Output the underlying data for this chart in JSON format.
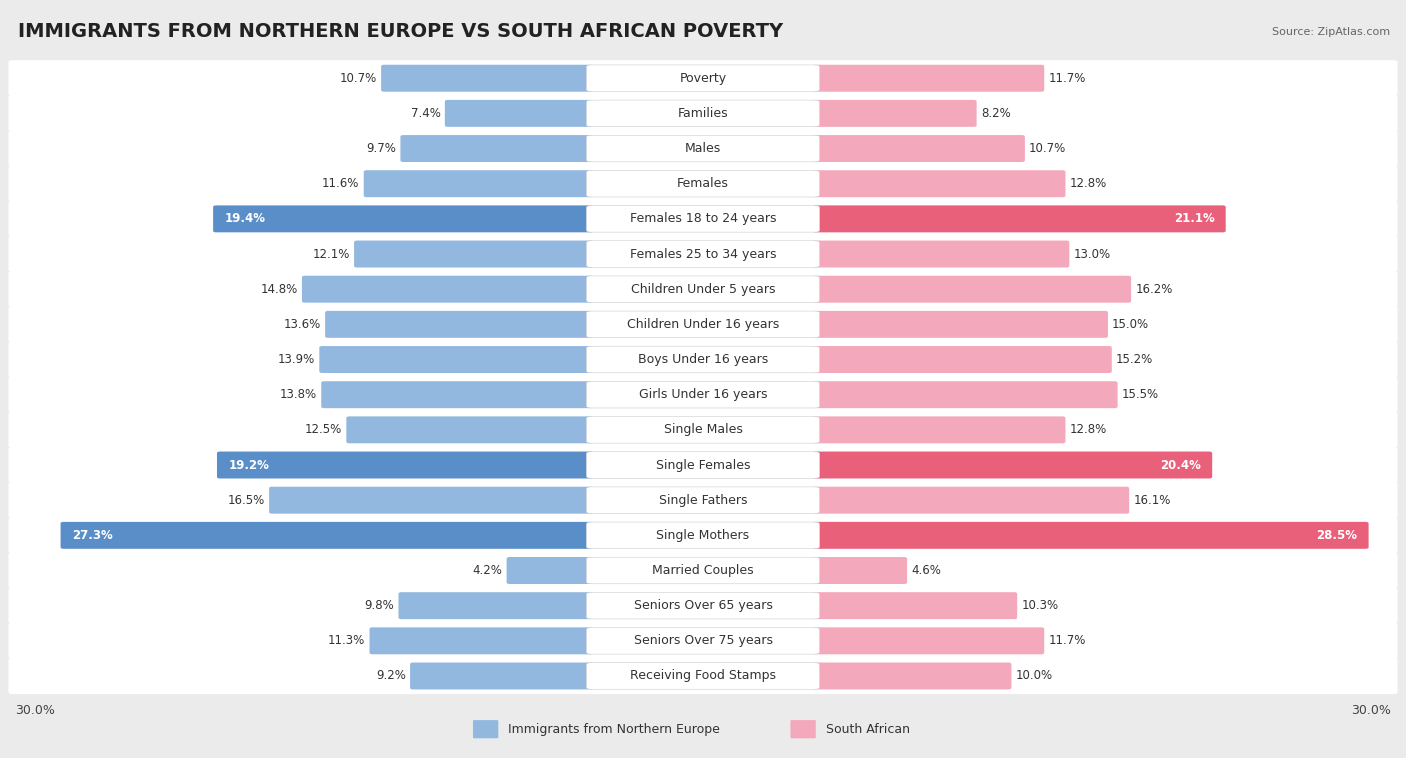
{
  "title": "IMMIGRANTS FROM NORTHERN EUROPE VS SOUTH AFRICAN POVERTY",
  "source": "Source: ZipAtlas.com",
  "categories": [
    "Poverty",
    "Families",
    "Males",
    "Females",
    "Females 18 to 24 years",
    "Females 25 to 34 years",
    "Children Under 5 years",
    "Children Under 16 years",
    "Boys Under 16 years",
    "Girls Under 16 years",
    "Single Males",
    "Single Females",
    "Single Fathers",
    "Single Mothers",
    "Married Couples",
    "Seniors Over 65 years",
    "Seniors Over 75 years",
    "Receiving Food Stamps"
  ],
  "left_values": [
    10.7,
    7.4,
    9.7,
    11.6,
    19.4,
    12.1,
    14.8,
    13.6,
    13.9,
    13.8,
    12.5,
    19.2,
    16.5,
    27.3,
    4.2,
    9.8,
    11.3,
    9.2
  ],
  "right_values": [
    11.7,
    8.2,
    10.7,
    12.8,
    21.1,
    13.0,
    16.2,
    15.0,
    15.2,
    15.5,
    12.8,
    20.4,
    16.1,
    28.5,
    4.6,
    10.3,
    11.7,
    10.0
  ],
  "left_color": "#92B8E0",
  "right_color": "#F4A8BB",
  "left_label": "Immigrants from Northern Europe",
  "right_label": "South African",
  "axis_limit": 30.0,
  "background_color": "#ebebeb",
  "row_bg_color": "#ffffff",
  "title_fontsize": 14,
  "label_fontsize": 9,
  "value_fontsize": 8.5,
  "highlight_threshold": 18.0,
  "highlight_left_color": "#5A8EC8",
  "highlight_right_color": "#E8607A"
}
